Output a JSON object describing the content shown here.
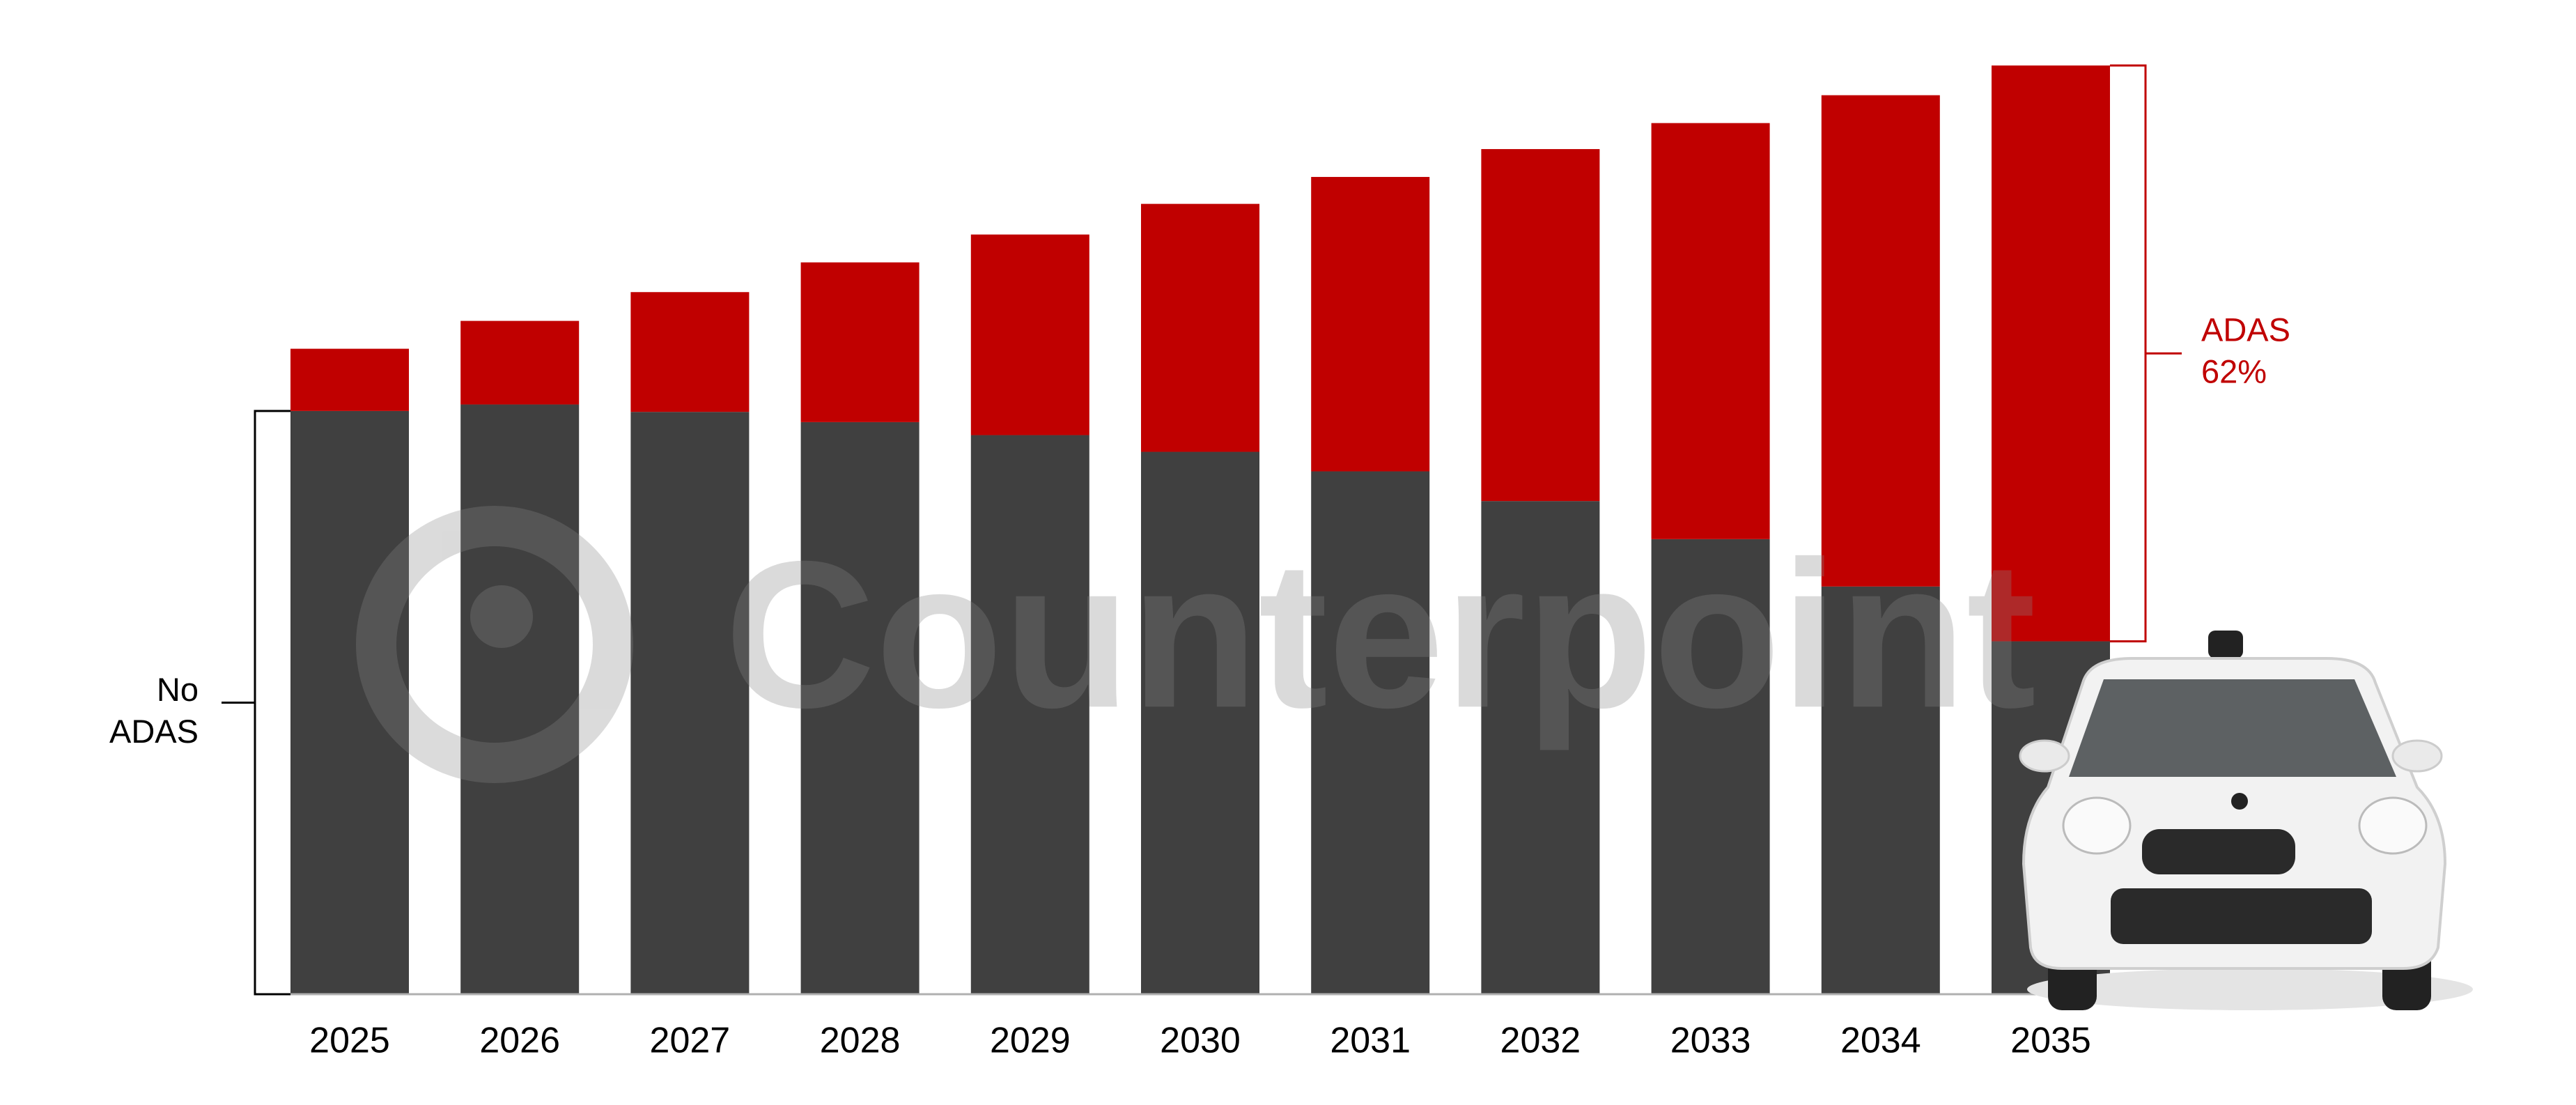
{
  "chart_data": {
    "type": "stacked_bar",
    "categories": [
      "2025",
      "2026",
      "2027",
      "2028",
      "2029",
      "2030",
      "2031",
      "2032",
      "2033",
      "2034",
      "2035"
    ],
    "series": [
      {
        "color": "#404040",
        "values": [
          62.8,
          63.5,
          62.7,
          61.6,
          60.2,
          58.4,
          56.3,
          53.1,
          49.0,
          43.9,
          38
        ]
      },
      {
        "color": "#c00000",
        "values": [
          6.7,
          9.0,
          12.9,
          17.2,
          21.6,
          26.7,
          31.7,
          37.9,
          44.8,
          52.9,
          62
        ]
      }
    ],
    "ylim": [
      0,
      100
    ],
    "annotations": [
      {
        "lines": [
          "No",
          "ADAS"
        ],
        "color": "#000000"
      },
      {
        "lines": [
          "ADAS",
          "62%"
        ],
        "color": "#c00000"
      }
    ],
    "watermark": "Counterpoint"
  }
}
